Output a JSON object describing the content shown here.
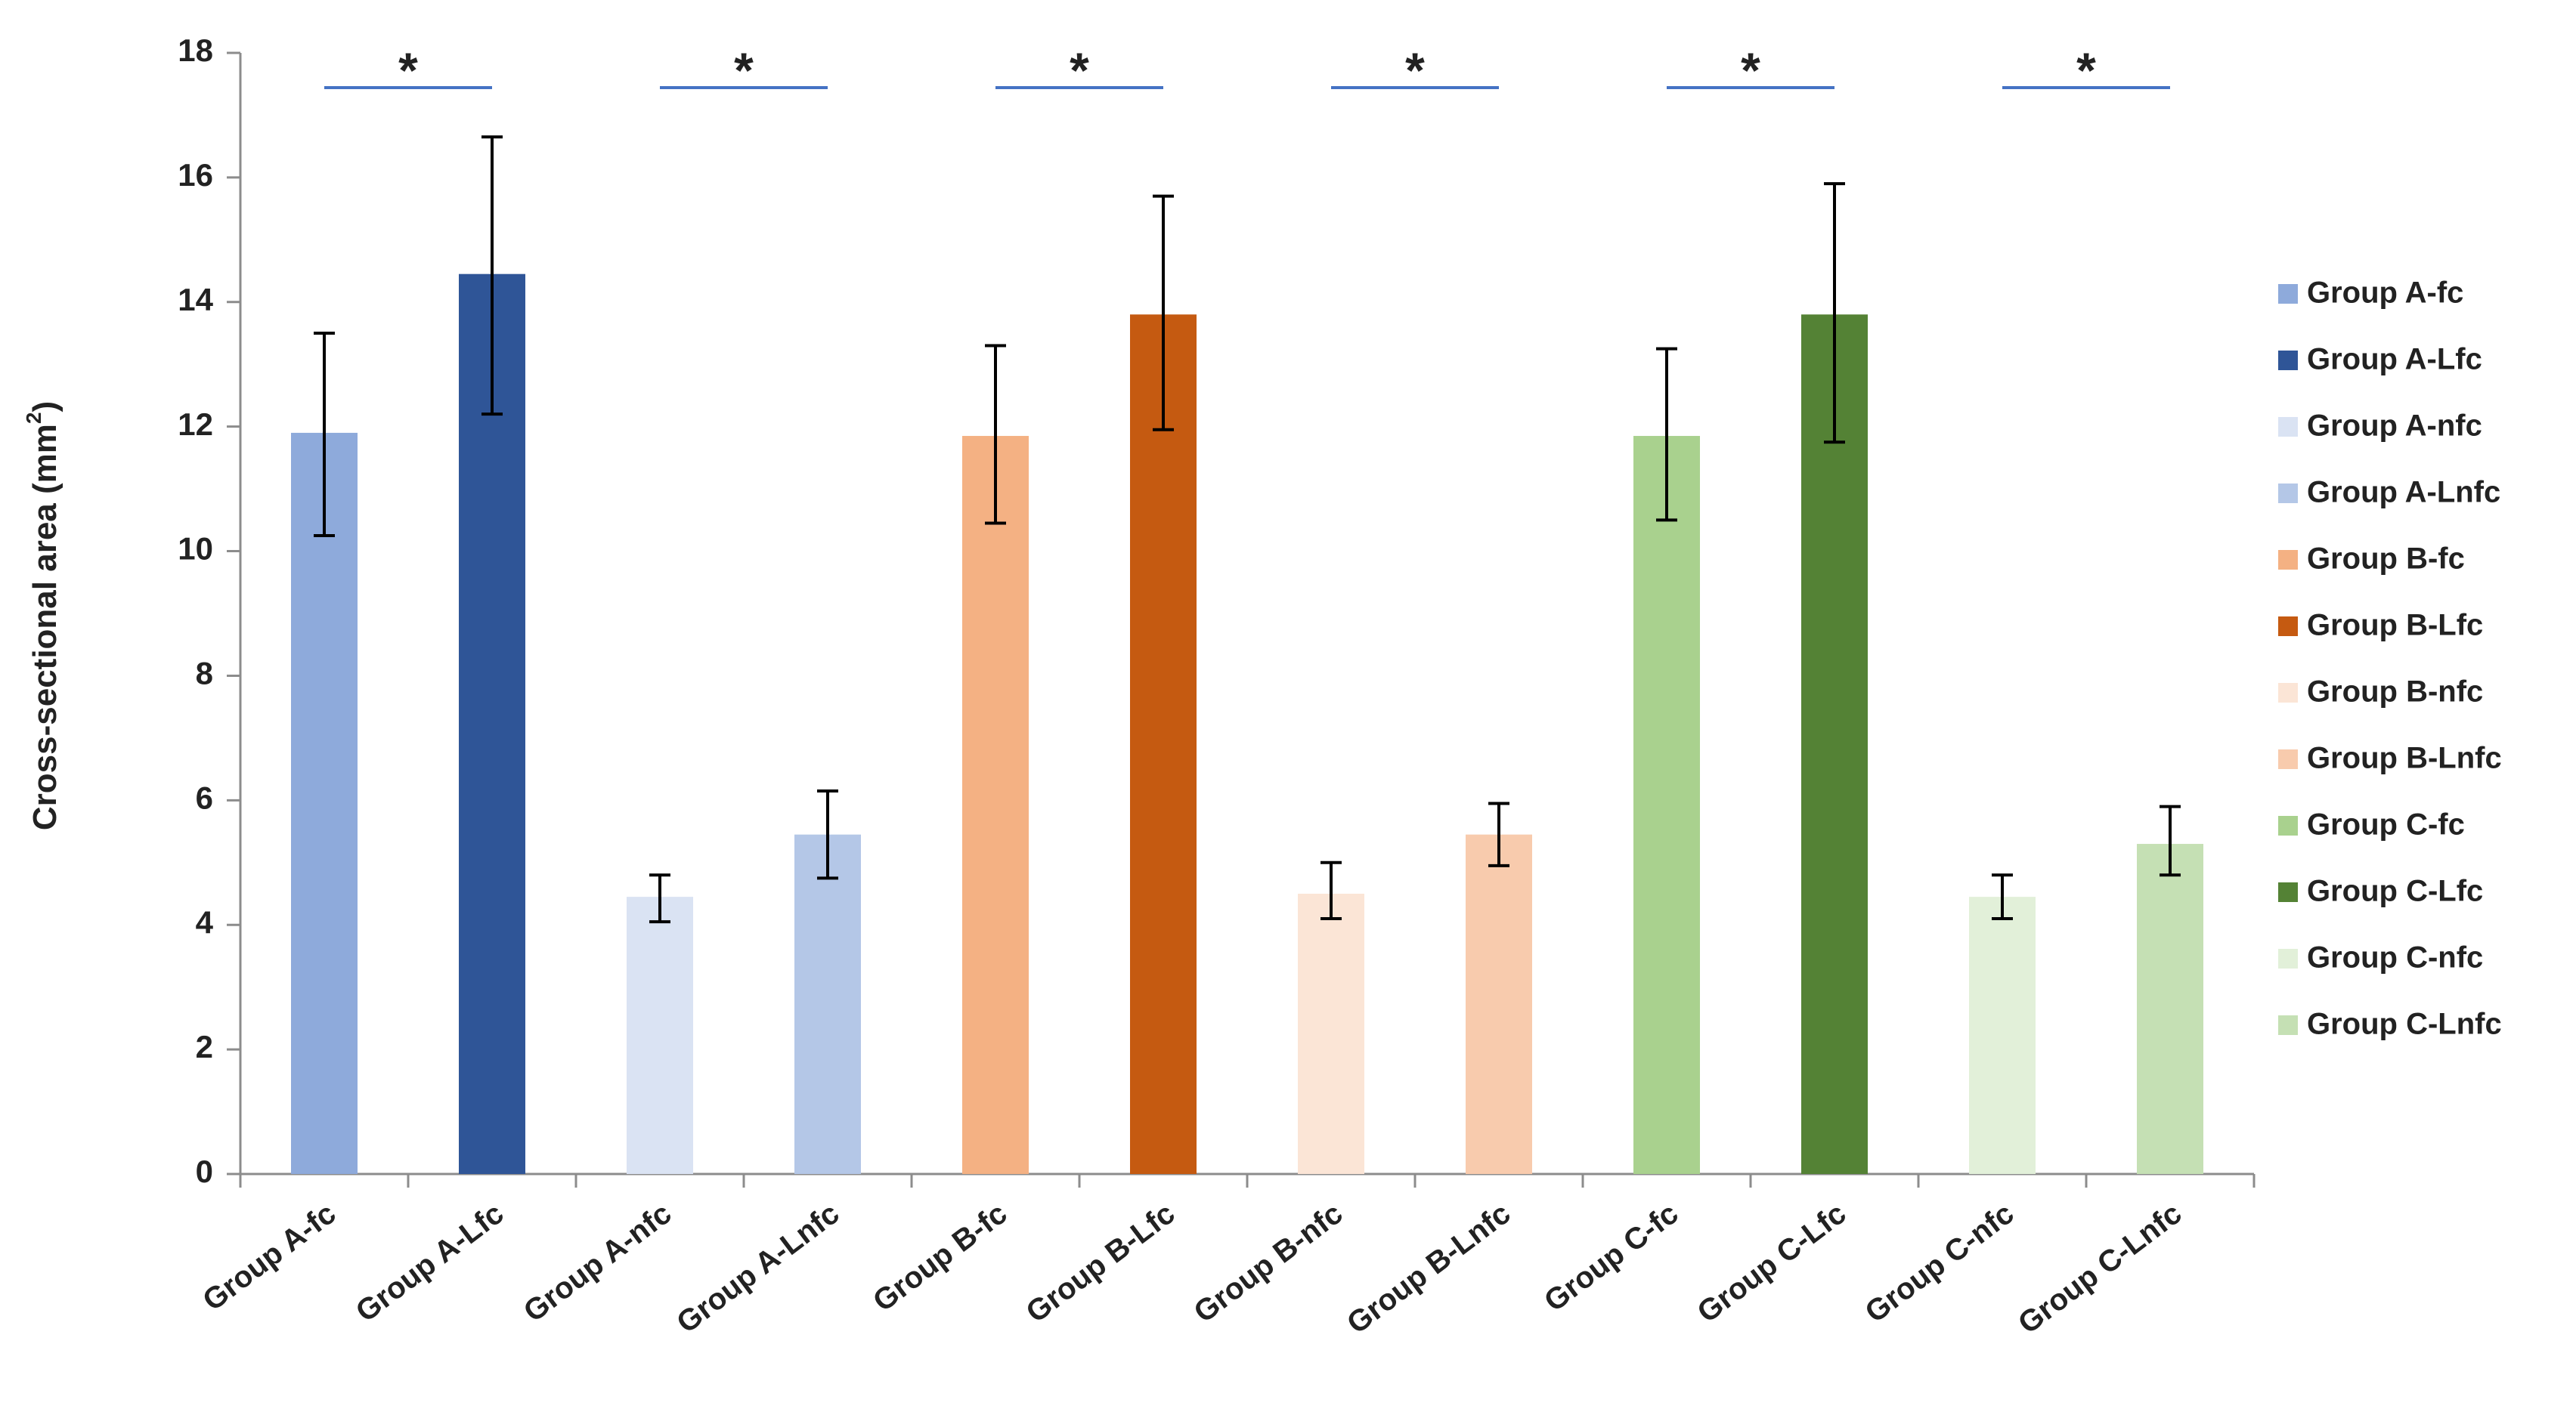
{
  "chart_data": {
    "type": "bar",
    "title": "",
    "xlabel": "",
    "ylabel": "Cross-sectional area (mm",
    "ylabel_superscript": "2",
    "ylabel_suffix": ")",
    "ylim": [
      0,
      18
    ],
    "yticks": [
      0,
      2,
      4,
      6,
      8,
      10,
      12,
      14,
      16,
      18
    ],
    "grid": false,
    "legend_position": "right",
    "categories": [
      "Group A-fc",
      "Group A-Lfc",
      "Group A-nfc",
      "Group A-Lnfc",
      "Group B-fc",
      "Group B-Lfc",
      "Group B-nfc",
      "Group B-Lnfc",
      "Group C-fc",
      "Group C-Lfc",
      "Group C-nfc",
      "Group C-Lnfc"
    ],
    "values": [
      11.9,
      14.45,
      4.45,
      5.45,
      11.85,
      13.8,
      4.5,
      5.45,
      11.85,
      13.8,
      4.45,
      5.3
    ],
    "error_low": [
      10.25,
      12.2,
      4.05,
      4.75,
      10.45,
      11.95,
      4.1,
      4.95,
      10.5,
      11.75,
      4.1,
      4.8
    ],
    "error_high": [
      13.5,
      16.65,
      4.8,
      6.15,
      13.3,
      15.7,
      5.0,
      5.95,
      13.25,
      15.9,
      4.8,
      5.9
    ],
    "colors": [
      "#8eaadb",
      "#2f5597",
      "#dae3f3",
      "#b4c7e7",
      "#f4b183",
      "#c55a11",
      "#fbe5d6",
      "#f8cbad",
      "#a9d18e",
      "#548235",
      "#e2f0d9",
      "#c5e0b4"
    ],
    "significance": [
      {
        "from": 0,
        "to": 1,
        "label": "*"
      },
      {
        "from": 2,
        "to": 3,
        "label": "*"
      },
      {
        "from": 4,
        "to": 5,
        "label": "*"
      },
      {
        "from": 6,
        "to": 7,
        "label": "*"
      },
      {
        "from": 8,
        "to": 9,
        "label": "*"
      },
      {
        "from": 10,
        "to": 11,
        "label": "*"
      }
    ],
    "bracket_color": "#4472c4",
    "legend": [
      "Group A-fc",
      "Group A-Lfc",
      "Group A-nfc",
      "Group A-Lnfc",
      "Group B-fc",
      "Group B-Lfc",
      "Group B-nfc",
      "Group B-Lnfc",
      "Group C-fc",
      "Group C-Lfc",
      "Group C-nfc",
      "Group C-Lnfc"
    ]
  }
}
